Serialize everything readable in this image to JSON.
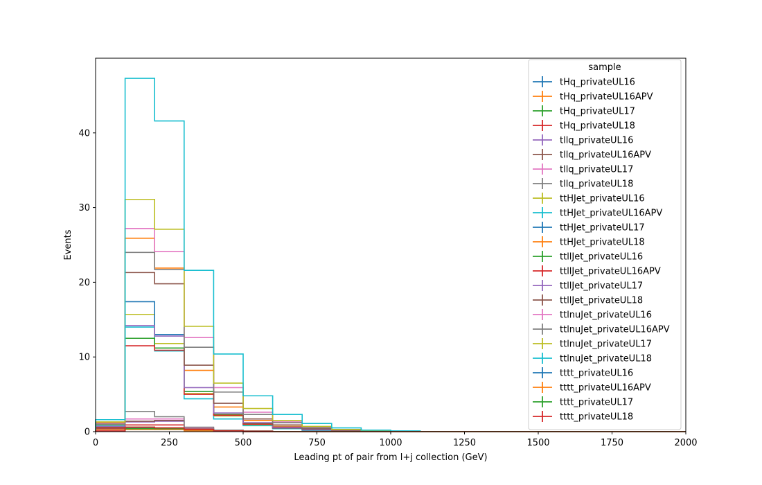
{
  "chart_data": {
    "type": "histogram-step",
    "xlabel": "Leading pt of pair from l+j collection (GeV)",
    "ylabel": "Events",
    "xlim": [
      0,
      2000
    ],
    "ylim": [
      0,
      50
    ],
    "xticks": [
      0,
      250,
      500,
      750,
      1000,
      1250,
      1500,
      1750,
      2000
    ],
    "yticks": [
      0,
      10,
      20,
      30,
      40
    ],
    "bin_edges": [
      0,
      100,
      200,
      300,
      400,
      500,
      600,
      700,
      800,
      900,
      1000,
      1100,
      1200,
      1300,
      1400,
      1500,
      1600,
      1700,
      1800,
      1900,
      2000
    ],
    "grid": false,
    "legend": {
      "title": "sample",
      "placement": "top-right"
    },
    "series": [
      {
        "name": "tHq_privateUL16",
        "color": "#1f77b4",
        "values": [
          0.3,
          0.5,
          0.3,
          0.1,
          0.05,
          0,
          0,
          0,
          0,
          0,
          0,
          0,
          0,
          0,
          0,
          0,
          0,
          0,
          0,
          0
        ]
      },
      {
        "name": "tHq_privateUL16APV",
        "color": "#ff7f0e",
        "values": [
          0.3,
          0.6,
          0.4,
          0.1,
          0.05,
          0,
          0,
          0,
          0,
          0,
          0,
          0,
          0,
          0,
          0,
          0,
          0,
          0,
          0,
          0
        ]
      },
      {
        "name": "tHq_privateUL17",
        "color": "#2ca02c",
        "values": [
          0.4,
          0.6,
          0.5,
          0.2,
          0.1,
          0,
          0,
          0,
          0,
          0,
          0,
          0,
          0,
          0,
          0,
          0,
          0,
          0,
          0,
          0
        ]
      },
      {
        "name": "tHq_privateUL18",
        "color": "#d62728",
        "values": [
          0.5,
          0.9,
          0.9,
          0.3,
          0.1,
          0,
          0,
          0,
          0,
          0,
          0,
          0,
          0,
          0,
          0,
          0,
          0,
          0,
          0,
          0
        ]
      },
      {
        "name": "tllq_privateUL16",
        "color": "#9467bd",
        "values": [
          0.4,
          1.3,
          1.4,
          0.4,
          0.1,
          0.05,
          0,
          0,
          0,
          0,
          0,
          0,
          0,
          0,
          0,
          0,
          0,
          0,
          0,
          0
        ]
      },
      {
        "name": "tllq_privateUL16APV",
        "color": "#8c564b",
        "values": [
          0.4,
          1.4,
          1.5,
          0.4,
          0.1,
          0.05,
          0,
          0,
          0,
          0,
          0,
          0,
          0,
          0,
          0,
          0,
          0,
          0,
          0,
          0
        ]
      },
      {
        "name": "tllq_privateUL17",
        "color": "#e377c2",
        "values": [
          0.5,
          1.7,
          1.7,
          0.5,
          0.2,
          0.05,
          0,
          0,
          0,
          0,
          0,
          0,
          0,
          0,
          0,
          0,
          0,
          0,
          0,
          0
        ]
      },
      {
        "name": "tllq_privateUL18",
        "color": "#7f7f7f",
        "values": [
          0.7,
          2.7,
          2.0,
          0.6,
          0.2,
          0.1,
          0,
          0,
          0,
          0,
          0,
          0,
          0,
          0,
          0,
          0,
          0,
          0,
          0,
          0
        ]
      },
      {
        "name": "ttHJet_privateUL16",
        "color": "#bcbd22",
        "values": [
          0.9,
          15.7,
          11.8,
          5.1,
          2.1,
          0.9,
          0.5,
          0.2,
          0.1,
          0.05,
          0,
          0,
          0,
          0,
          0,
          0,
          0,
          0,
          0,
          0
        ]
      },
      {
        "name": "ttHJet_privateUL16APV",
        "color": "#17becf",
        "values": [
          0.8,
          14.0,
          10.8,
          4.4,
          1.7,
          0.8,
          0.4,
          0.2,
          0.1,
          0.05,
          0,
          0,
          0,
          0,
          0,
          0,
          0,
          0,
          0,
          0
        ]
      },
      {
        "name": "ttHJet_privateUL17",
        "color": "#1f77b4",
        "values": [
          1.1,
          17.4,
          13.0,
          5.4,
          2.2,
          1.0,
          0.5,
          0.2,
          0.1,
          0.05,
          0,
          0,
          0,
          0,
          0,
          0,
          0,
          0,
          0,
          0
        ]
      },
      {
        "name": "ttHJet_privateUL18",
        "color": "#ff7f0e",
        "values": [
          1.2,
          25.9,
          21.9,
          8.2,
          3.3,
          1.5,
          0.7,
          0.3,
          0.2,
          0.1,
          0,
          0,
          0,
          0,
          0,
          0,
          0,
          0,
          0,
          0
        ]
      },
      {
        "name": "ttllJet_privateUL16",
        "color": "#2ca02c",
        "values": [
          0.6,
          12.5,
          11.2,
          5.4,
          2.3,
          1.1,
          0.6,
          0.3,
          0.1,
          0.05,
          0,
          0,
          0,
          0,
          0,
          0,
          0,
          0,
          0,
          0
        ]
      },
      {
        "name": "ttllJet_privateUL16APV",
        "color": "#d62728",
        "values": [
          0.5,
          11.5,
          10.9,
          5.0,
          2.2,
          1.0,
          0.5,
          0.3,
          0.1,
          0.05,
          0,
          0,
          0,
          0,
          0,
          0,
          0,
          0,
          0,
          0
        ]
      },
      {
        "name": "ttllJet_privateUL17",
        "color": "#9467bd",
        "values": [
          0.7,
          14.2,
          12.8,
          5.9,
          2.5,
          1.2,
          0.6,
          0.3,
          0.1,
          0.05,
          0,
          0,
          0,
          0,
          0,
          0,
          0,
          0,
          0,
          0
        ]
      },
      {
        "name": "ttllJet_privateUL18",
        "color": "#8c564b",
        "values": [
          1.0,
          21.3,
          19.8,
          8.9,
          3.8,
          1.7,
          0.9,
          0.4,
          0.2,
          0.1,
          0,
          0,
          0,
          0,
          0,
          0,
          0,
          0,
          0,
          0
        ]
      },
      {
        "name": "ttlnuJet_privateUL16",
        "color": "#e377c2",
        "values": [
          1.1,
          27.2,
          24.1,
          12.6,
          5.9,
          2.6,
          1.3,
          0.6,
          0.3,
          0.1,
          0.05,
          0,
          0,
          0,
          0,
          0,
          0,
          0,
          0,
          0
        ]
      },
      {
        "name": "ttlnuJet_privateUL16APV",
        "color": "#7f7f7f",
        "values": [
          1.0,
          24.0,
          21.7,
          11.3,
          5.3,
          2.3,
          1.2,
          0.5,
          0.3,
          0.1,
          0.05,
          0,
          0,
          0,
          0,
          0,
          0,
          0,
          0,
          0
        ]
      },
      {
        "name": "ttlnuJet_privateUL17",
        "color": "#bcbd22",
        "values": [
          1.3,
          31.1,
          27.1,
          14.1,
          6.5,
          3.1,
          1.5,
          0.7,
          0.3,
          0.1,
          0.05,
          0,
          0,
          0,
          0,
          0,
          0,
          0,
          0,
          0
        ]
      },
      {
        "name": "ttlnuJet_privateUL18",
        "color": "#17becf",
        "values": [
          1.6,
          47.3,
          41.6,
          21.6,
          10.4,
          4.8,
          2.3,
          1.1,
          0.5,
          0.2,
          0.1,
          0,
          0,
          0,
          0,
          0,
          0,
          0,
          0,
          0
        ]
      },
      {
        "name": "tttt_privateUL16",
        "color": "#1f77b4",
        "values": [
          0.05,
          0.3,
          0.3,
          0.2,
          0.1,
          0.05,
          0,
          0,
          0,
          0,
          0,
          0,
          0,
          0,
          0,
          0,
          0,
          0,
          0,
          0
        ]
      },
      {
        "name": "tttt_privateUL16APV",
        "color": "#ff7f0e",
        "values": [
          0.05,
          0.3,
          0.3,
          0.2,
          0.1,
          0.05,
          0,
          0,
          0,
          0,
          0,
          0,
          0,
          0,
          0,
          0,
          0,
          0,
          0,
          0
        ]
      },
      {
        "name": "tttt_privateUL17",
        "color": "#2ca02c",
        "values": [
          0.05,
          0.4,
          0.4,
          0.3,
          0.1,
          0.05,
          0,
          0,
          0,
          0,
          0,
          0,
          0,
          0,
          0,
          0,
          0,
          0,
          0,
          0
        ]
      },
      {
        "name": "tttt_privateUL18",
        "color": "#d62728",
        "values": [
          0.1,
          0.6,
          0.5,
          0.3,
          0.1,
          0.05,
          0,
          0,
          0,
          0,
          0,
          0,
          0,
          0,
          0,
          0,
          0,
          0,
          0,
          0
        ]
      }
    ]
  }
}
